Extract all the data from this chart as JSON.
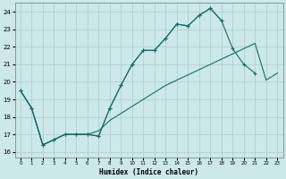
{
  "xlabel": "Humidex (Indice chaleur)",
  "background_color": "#cce8e8",
  "grid_color": "#aacccc",
  "line_color": "#1a6b6b",
  "xlim": [
    -0.5,
    23.5
  ],
  "ylim": [
    15.7,
    24.5
  ],
  "yticks": [
    16,
    17,
    18,
    19,
    20,
    21,
    22,
    23,
    24
  ],
  "xticks": [
    0,
    1,
    2,
    3,
    4,
    5,
    6,
    7,
    8,
    9,
    10,
    11,
    12,
    13,
    14,
    15,
    16,
    17,
    18,
    19,
    20,
    21,
    22,
    23
  ],
  "series1_x": [
    0,
    1,
    2,
    3,
    4,
    5,
    6,
    7,
    8,
    9,
    10,
    11,
    12,
    13,
    14,
    15,
    16,
    17,
    18
  ],
  "series1_y": [
    19.5,
    18.5,
    16.4,
    16.7,
    17.0,
    17.0,
    17.0,
    16.9,
    18.5,
    19.8,
    21.0,
    21.8,
    21.8,
    22.5,
    23.3,
    23.2,
    23.8,
    24.2,
    23.5
  ],
  "series2_x": [
    0,
    1,
    2,
    3,
    4,
    5,
    6,
    7,
    8,
    9,
    10,
    11,
    12,
    13,
    14,
    15,
    16,
    17,
    18,
    19,
    20,
    21
  ],
  "series2_y": [
    19.5,
    18.5,
    16.4,
    16.7,
    17.0,
    17.0,
    17.0,
    16.9,
    18.5,
    19.8,
    21.0,
    21.8,
    21.8,
    22.5,
    23.3,
    23.2,
    23.8,
    24.2,
    23.5,
    21.9,
    21.0,
    20.5
  ],
  "series3_x": [
    0,
    1,
    2,
    3,
    4,
    5,
    6,
    7,
    8,
    9,
    10,
    11,
    12,
    13,
    14,
    15,
    16,
    17,
    18,
    19,
    20,
    21,
    22,
    23
  ],
  "series3_y": [
    19.5,
    18.5,
    16.4,
    16.7,
    17.0,
    17.0,
    17.0,
    17.2,
    17.8,
    18.2,
    18.6,
    19.0,
    19.4,
    19.8,
    20.1,
    20.4,
    20.7,
    21.0,
    21.3,
    21.6,
    21.9,
    22.2,
    20.1,
    20.5
  ]
}
